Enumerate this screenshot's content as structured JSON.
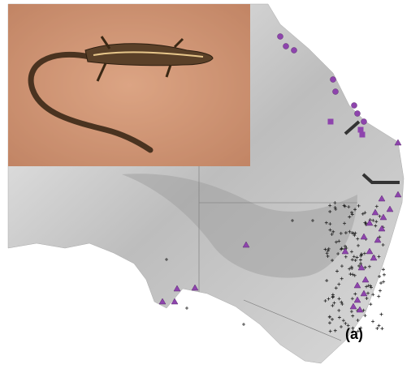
{
  "panel_label": "(a)"
}
